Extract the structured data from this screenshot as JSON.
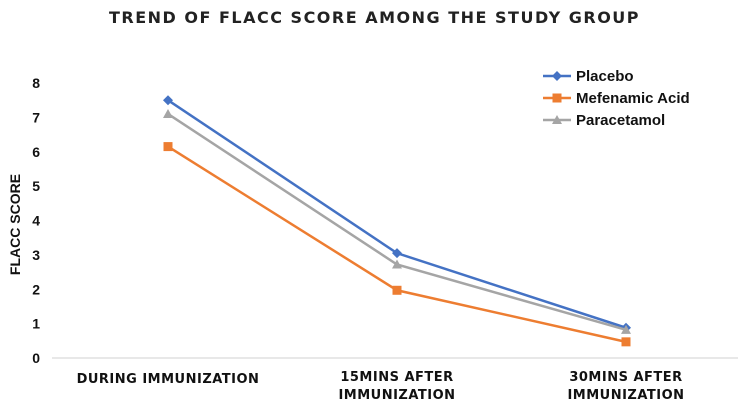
{
  "chart_data": {
    "type": "line",
    "title": "TREND OF FLACC SCORE AMONG THE STUDY GROUP",
    "xlabel": "",
    "ylabel": "FLACC SCORE",
    "ylim": [
      0,
      8
    ],
    "yticks": [
      "0",
      "1",
      "2",
      "3",
      "4",
      "5",
      "6",
      "7",
      "8"
    ],
    "categories": [
      [
        "DURING IMMUNIZATION"
      ],
      [
        "15MINS AFTER",
        "IMMUNIZATION"
      ],
      [
        "30MINS AFTER",
        "IMMUNIZATION"
      ]
    ],
    "legend_position": "top-right",
    "series": [
      {
        "name": "Placebo",
        "color": "#4472C4",
        "marker": "diamond",
        "values": [
          7.5,
          3.05,
          0.88
        ]
      },
      {
        "name": "Mefenamic Acid",
        "color": "#ED7D31",
        "marker": "square",
        "values": [
          6.15,
          1.97,
          0.47
        ]
      },
      {
        "name": "Paracetamol",
        "color": "#A5A5A5",
        "marker": "triangle",
        "values": [
          7.1,
          2.72,
          0.82
        ]
      }
    ]
  }
}
